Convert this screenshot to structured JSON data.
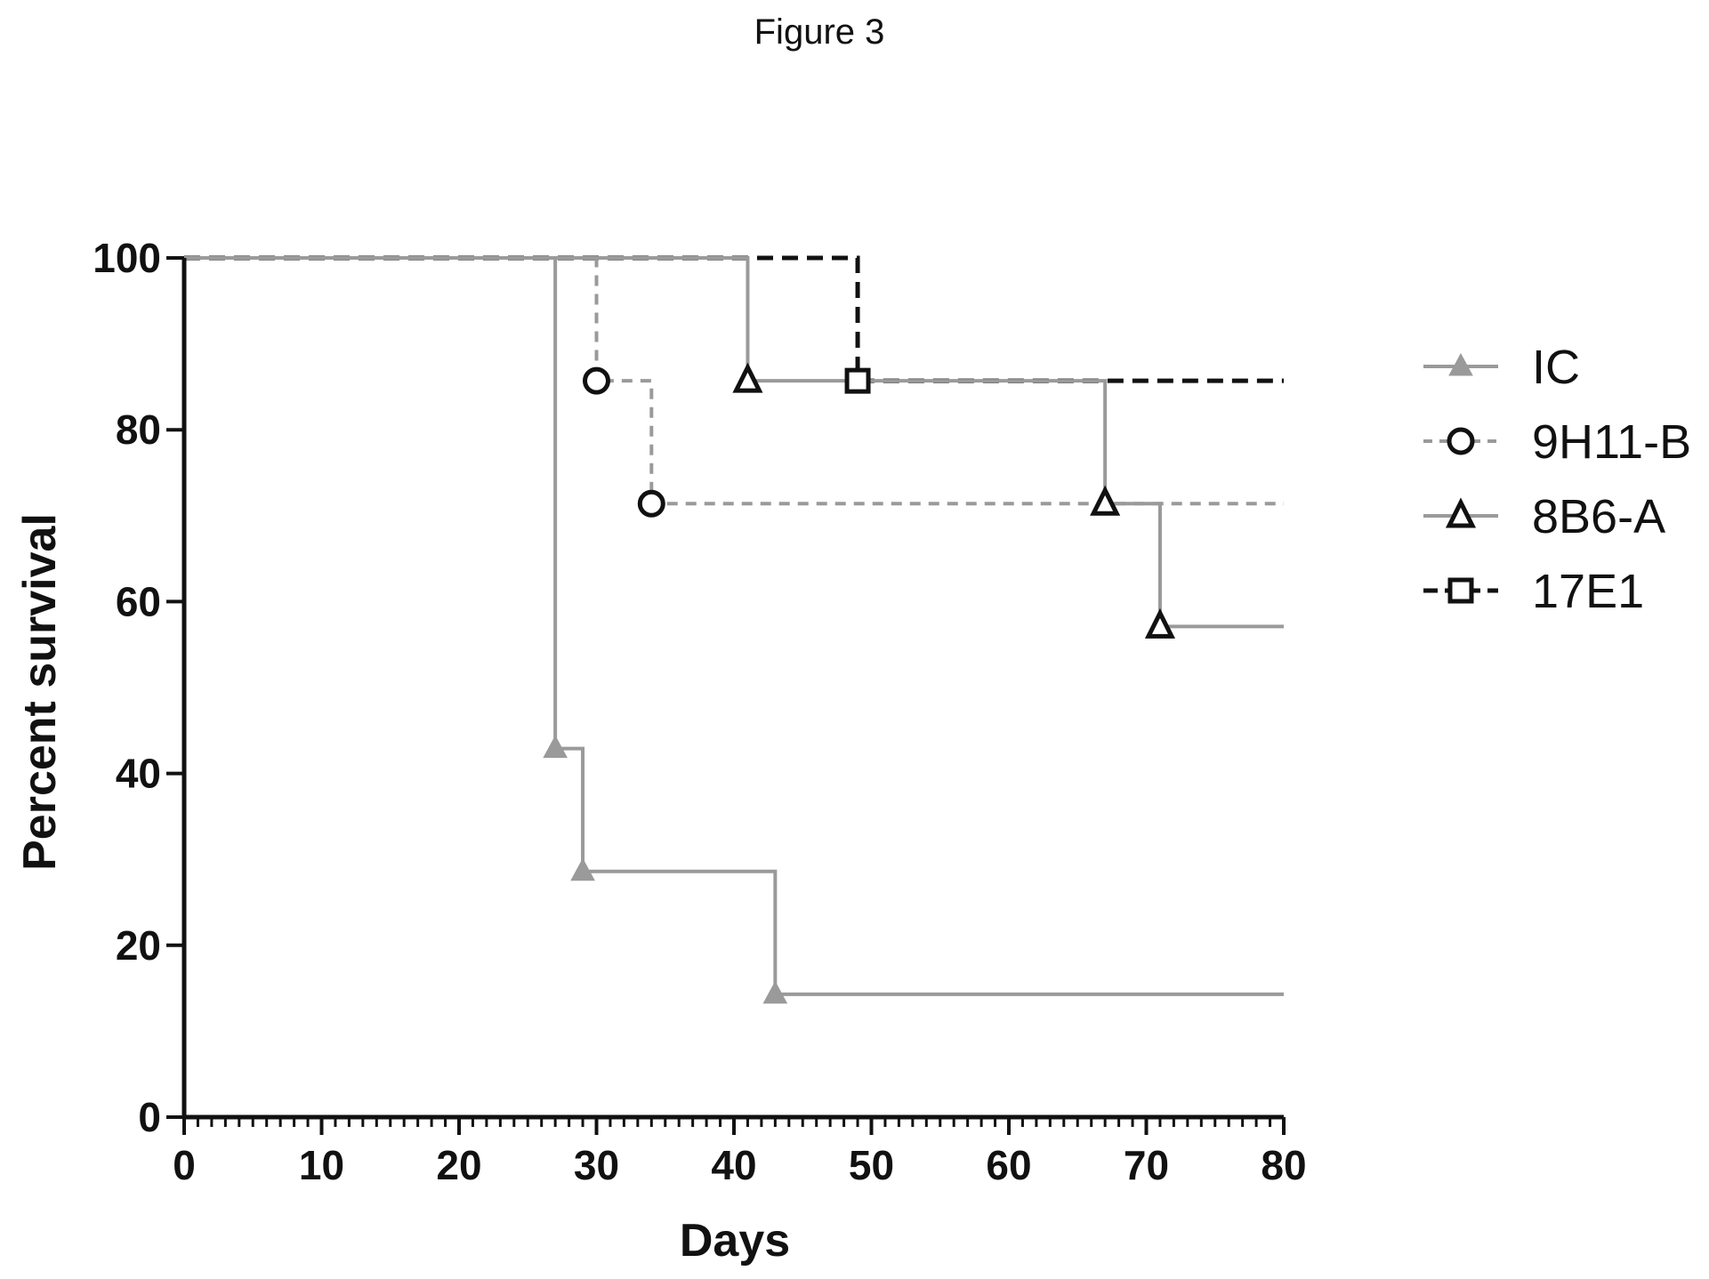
{
  "figure_title": "Figure 3",
  "chart_data": {
    "type": "line",
    "subtype": "kaplan-meier-step",
    "title": "",
    "xlabel": "Days",
    "ylabel": "Percent survival",
    "xlim": [
      0,
      80
    ],
    "ylim": [
      0,
      100
    ],
    "x_ticks": [
      0,
      10,
      20,
      30,
      40,
      50,
      60,
      70,
      80
    ],
    "y_ticks": [
      0,
      20,
      40,
      60,
      80,
      100
    ],
    "x_minor_tick_step": 1,
    "grid": false,
    "legend_position": "right",
    "series": [
      {
        "name": "IC",
        "color": "#9a9a9a",
        "line_style": "solid",
        "marker": "filled-triangle",
        "steps": [
          [
            0,
            100
          ],
          [
            27,
            42.9
          ],
          [
            29,
            28.6
          ],
          [
            43,
            14.3
          ],
          [
            80,
            14.3
          ]
        ]
      },
      {
        "name": "9H11-B",
        "color": "#9a9a9a",
        "line_style": "dashed",
        "marker": "open-circle",
        "steps": [
          [
            0,
            100
          ],
          [
            30,
            85.7
          ],
          [
            34,
            71.4
          ],
          [
            80,
            71.4
          ]
        ]
      },
      {
        "name": "8B6-A",
        "color": "#9a9a9a",
        "line_style": "solid",
        "marker": "open-triangle",
        "steps": [
          [
            0,
            100
          ],
          [
            41,
            85.7
          ],
          [
            67,
            71.4
          ],
          [
            71,
            57.1
          ],
          [
            80,
            57.1
          ]
        ]
      },
      {
        "name": "17E1",
        "color": "#111111",
        "line_style": "dashed",
        "marker": "open-square",
        "steps": [
          [
            0,
            100
          ],
          [
            49,
            85.7
          ],
          [
            80,
            85.7
          ]
        ]
      }
    ]
  }
}
